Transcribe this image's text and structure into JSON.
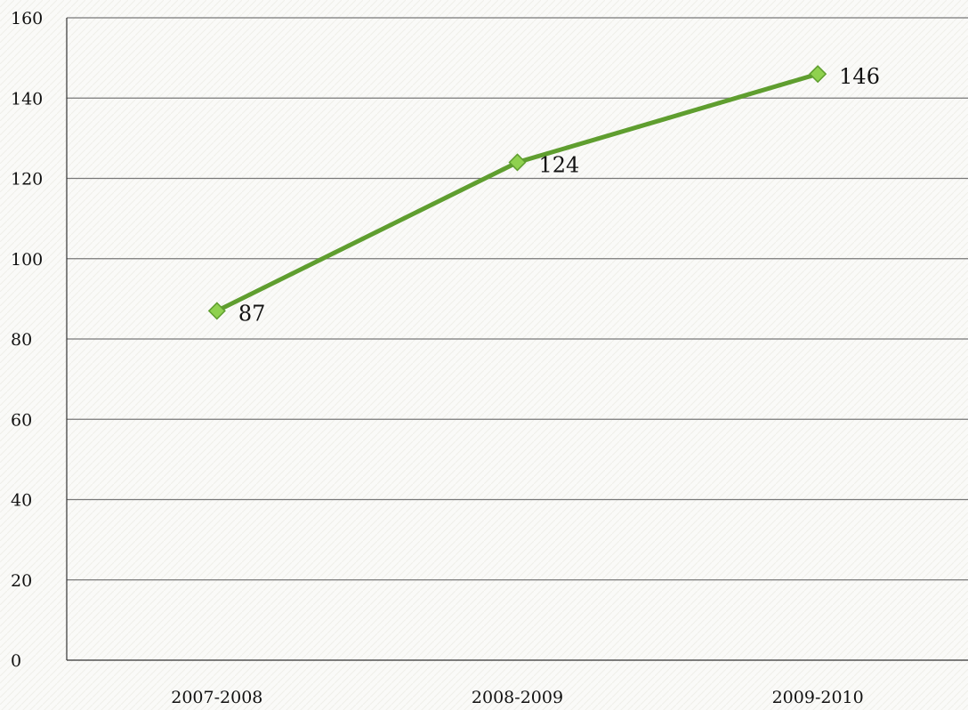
{
  "chart_data": {
    "type": "line",
    "title": "",
    "xlabel": "",
    "ylabel": "",
    "categories": [
      "2007-2008",
      "2008-2009",
      "2009-2010"
    ],
    "series": [
      {
        "values": [
          87,
          124,
          146
        ],
        "color": "#5f9e2f",
        "marker_fill": "#8fd14f",
        "marker_shape": "diamond"
      }
    ],
    "ylim": [
      0,
      160
    ],
    "yticks": [
      "0",
      "20",
      "40",
      "60",
      "80",
      "100",
      "120",
      "140",
      "160"
    ],
    "data_labels": [
      "87",
      "124",
      "146"
    ],
    "grid": true,
    "legend": "none"
  }
}
